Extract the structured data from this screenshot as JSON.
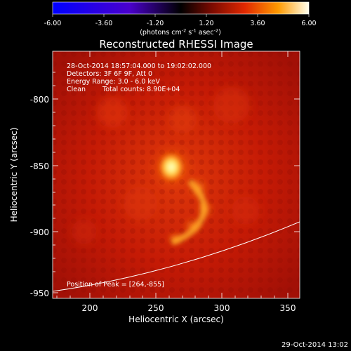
{
  "colorbar": {
    "ticks": [
      "-6.00",
      "-3.60",
      "-1.20",
      "1.20",
      "3.60",
      "6.00"
    ],
    "units_parts": [
      "(photons cm",
      "-2",
      " s",
      "-1",
      " asec",
      "-2",
      ")"
    ]
  },
  "title": "Reconstructed RHESSI Image",
  "info": {
    "time": "28-Oct-2014 18:57:04.000 to 19:02:02.000",
    "detectors": "Detectors: 3F 6F 9F, Att 0",
    "energy": "Energy Range: 3.0 - 6.0 keV",
    "algorithm": "Clean",
    "counts": "Total counts: 8.90E+04",
    "peak": "Position of Peak = [264,-855]"
  },
  "axes": {
    "x_ticks": [
      "200",
      "250",
      "300",
      "350"
    ],
    "y_ticks": [
      "-800",
      "-850",
      "-900",
      "-950"
    ],
    "xlabel": "Heliocentric X (arcsec)",
    "ylabel": "Heliocentric Y (arcsec)"
  },
  "footer_timestamp": "29-Oct-2014 13:02",
  "colors": {
    "background": "#000000",
    "text": "#ffffff",
    "image_base": "#c51a05",
    "peak_core": "#ffffcc"
  }
}
